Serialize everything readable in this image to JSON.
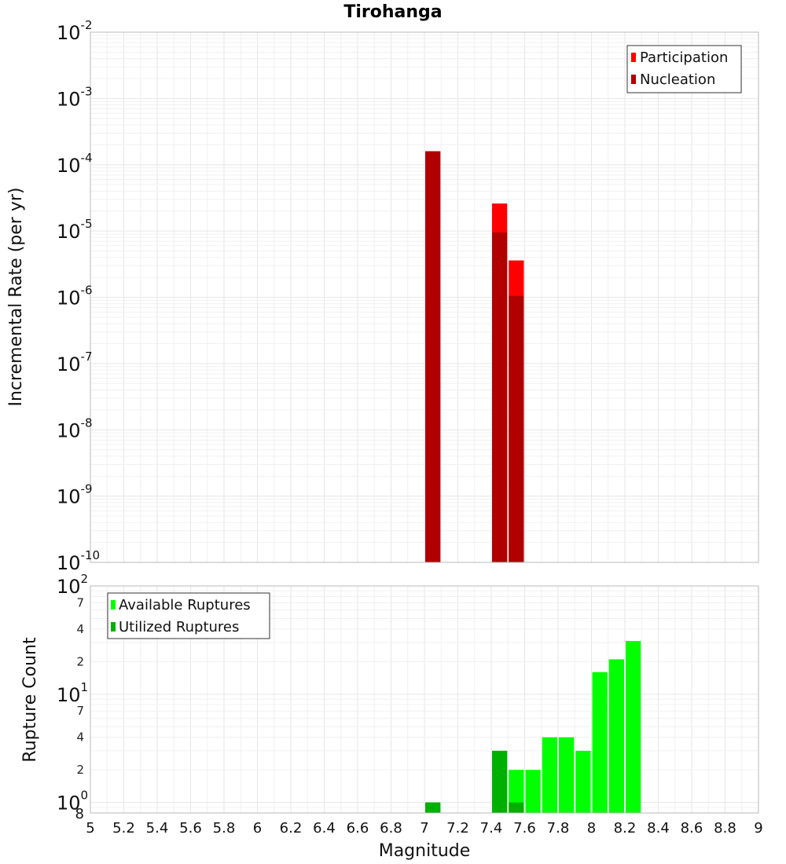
{
  "title": "Tirohanga",
  "xlabel": "Magnitude",
  "chart_data": [
    {
      "type": "bar",
      "ylabel": "Incremental Rate (per yr)",
      "yscale": "log",
      "ylim": [
        1e-10,
        0.01
      ],
      "xlim": [
        5,
        9
      ],
      "bar_width": 0.1,
      "y_ticks": [
        {
          "base": "10",
          "exp": "-10",
          "value": 1e-10
        },
        {
          "base": "10",
          "exp": "-9",
          "value": 1e-09
        },
        {
          "base": "10",
          "exp": "-8",
          "value": 1e-08
        },
        {
          "base": "10",
          "exp": "-7",
          "value": 1e-07
        },
        {
          "base": "10",
          "exp": "-6",
          "value": 1e-06
        },
        {
          "base": "10",
          "exp": "-5",
          "value": 1e-05
        },
        {
          "base": "10",
          "exp": "-4",
          "value": 0.0001
        },
        {
          "base": "10",
          "exp": "-3",
          "value": 0.001
        },
        {
          "base": "10",
          "exp": "-2",
          "value": 0.01
        }
      ],
      "series": [
        {
          "name": "Participation",
          "color": "#ff0000",
          "x": [
            7.05,
            7.45,
            7.55
          ],
          "values": [
            0.00016,
            2.6e-05,
            3.6e-06
          ]
        },
        {
          "name": "Nucleation",
          "color": "#b00000",
          "x": [
            7.05,
            7.45,
            7.55
          ],
          "values": [
            0.00016,
            9.5e-06,
            1.05e-06
          ]
        }
      ],
      "legend_position": "top-right",
      "grid": true
    },
    {
      "type": "bar",
      "ylabel": "Rupture Count",
      "yscale": "log",
      "ylim": [
        0.8,
        100
      ],
      "xlim": [
        5,
        9
      ],
      "bar_width": 0.1,
      "y_ticks": [
        {
          "base": "10",
          "exp": "0",
          "value": 1
        },
        {
          "base": "10",
          "exp": "1",
          "value": 10
        },
        {
          "base": "10",
          "exp": "2",
          "value": 100
        }
      ],
      "y_minor_ticks": [
        {
          "label": "8",
          "value": 0.8
        },
        {
          "label": "2",
          "value": 2
        },
        {
          "label": "4",
          "value": 4
        },
        {
          "label": "7",
          "value": 7
        },
        {
          "label": "2",
          "value": 20
        },
        {
          "label": "4",
          "value": 40
        },
        {
          "label": "7",
          "value": 70
        }
      ],
      "series": [
        {
          "name": "Available Ruptures",
          "color": "#00ff00",
          "x": [
            7.05,
            7.45,
            7.55,
            7.65,
            7.75,
            7.85,
            7.95,
            8.05,
            8.15,
            8.25
          ],
          "values": [
            1,
            3,
            2,
            2,
            4,
            4,
            3,
            16,
            21,
            31
          ]
        },
        {
          "name": "Utilized Ruptures",
          "color": "#00b000",
          "x": [
            7.05,
            7.45,
            7.55
          ],
          "values": [
            1,
            3,
            1
          ]
        }
      ],
      "legend_position": "top-left",
      "grid": true
    }
  ],
  "x_ticks": [
    "5",
    "5.2",
    "5.4",
    "5.6",
    "5.8",
    "6",
    "6.2",
    "6.4",
    "6.6",
    "6.8",
    "7",
    "7.2",
    "7.4",
    "7.6",
    "7.8",
    "8",
    "8.2",
    "8.4",
    "8.6",
    "8.8",
    "9"
  ]
}
